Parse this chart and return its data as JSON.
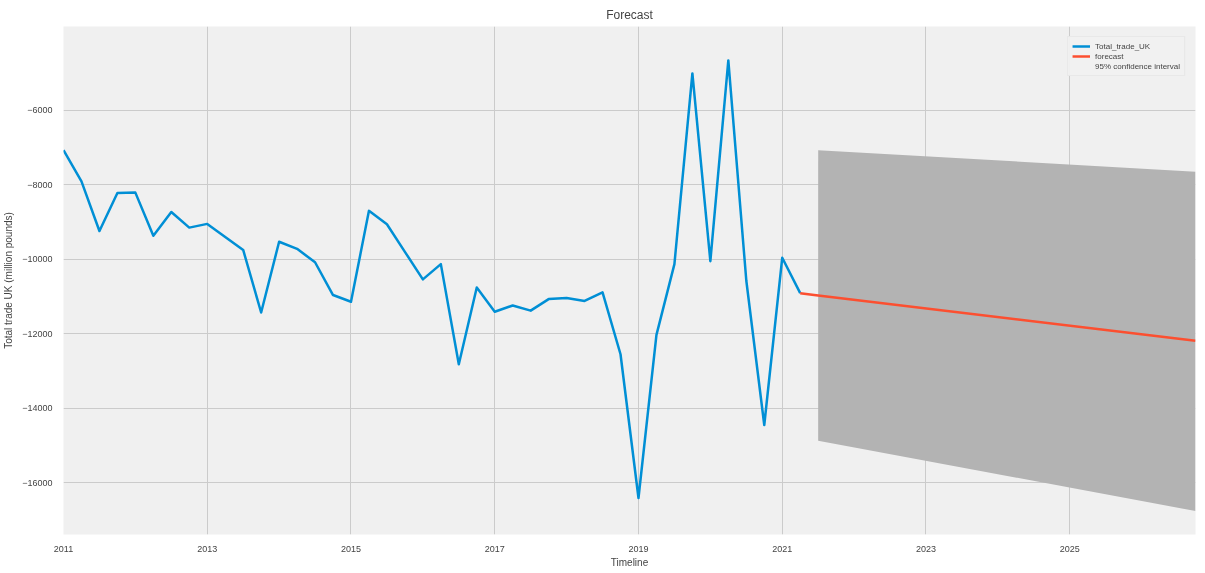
{
  "chart_data": {
    "type": "line",
    "title": "Forecast",
    "xlabel": "Timeline",
    "ylabel": "Total trade UK (million pounds)",
    "x": [
      2011.0,
      2011.25,
      2011.5,
      2011.75,
      2012.0,
      2012.25,
      2012.5,
      2012.75,
      2013.0,
      2013.25,
      2013.5,
      2013.75,
      2014.0,
      2014.25,
      2014.5,
      2014.75,
      2015.0,
      2015.25,
      2015.5,
      2015.75,
      2016.0,
      2016.25,
      2016.5,
      2016.75,
      2017.0,
      2017.25,
      2017.5,
      2017.75,
      2018.0,
      2018.25,
      2018.5,
      2018.75,
      2019.0,
      2019.25,
      2019.5,
      2019.75,
      2020.0,
      2020.25,
      2020.5,
      2020.75,
      2021.0,
      2021.25
    ],
    "series": [
      {
        "name": "Total_trade_UK",
        "color": "#008fd5",
        "values": [
          -7070,
          -7910,
          -9240,
          -8220,
          -8210,
          -9370,
          -8730,
          -9150,
          -9050,
          -9400,
          -9750,
          -11430,
          -9530,
          -9720,
          -10080,
          -10960,
          -11140,
          -8700,
          -9060,
          -9800,
          -10540,
          -10130,
          -12820,
          -10760,
          -11410,
          -11240,
          -11380,
          -11070,
          -11040,
          -11120,
          -10890,
          -12550,
          -16410,
          -12030,
          -10130,
          -5010,
          -10050,
          -4660,
          -10570,
          -14450,
          -9960,
          -10910
        ]
      },
      {
        "name": "forecast",
        "color": "#fc4f30",
        "x": [
          2021.25,
          2021.5,
          2026.75
        ],
        "values": [
          -10910,
          -10970,
          -12190
        ],
        "lower": [
          null,
          -14870,
          -16760
        ],
        "upper": [
          null,
          -7070,
          -7650
        ]
      }
    ],
    "annotations": [
      "95% confidence interval"
    ],
    "xlim": [
      2011,
      2026.75
    ],
    "xticks": [
      2011,
      2013,
      2015,
      2017,
      2019,
      2021,
      2023,
      2025
    ],
    "ylim": [
      -17390,
      -3750
    ],
    "yticks": [
      {
        "value": -16000,
        "label": "−16000"
      },
      {
        "value": -14000,
        "label": "−14000"
      },
      {
        "value": -12000,
        "label": "−12000"
      },
      {
        "value": -10000,
        "label": "−10000"
      },
      {
        "value": -8000,
        "label": "−8000"
      },
      {
        "value": -6000,
        "label": "−6000"
      }
    ],
    "grid": true,
    "legend": "top right"
  }
}
